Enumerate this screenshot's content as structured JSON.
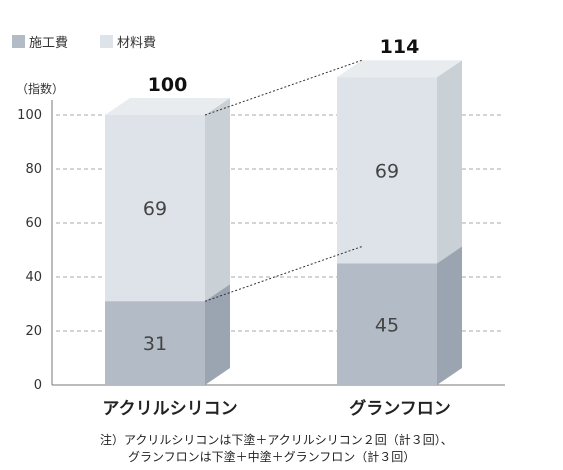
{
  "chart_data": {
    "type": "bar",
    "stacked": true,
    "unit_label": "（指数）",
    "categories": [
      "アクリルシリコン",
      "グランフロン"
    ],
    "series": [
      {
        "name": "施工費",
        "values": [
          31,
          45
        ],
        "color": "#b3bcc6"
      },
      {
        "name": "材料費",
        "values": [
          69,
          69
        ],
        "color": "#dde3e8"
      }
    ],
    "totals": [
      "100",
      "114"
    ],
    "ylim": [
      0,
      120
    ],
    "yticks": [
      0,
      20,
      40,
      60,
      80,
      100
    ],
    "grid": true,
    "legend_position": "top-left",
    "notes": [
      "注）アクリルシリコンは下塗＋アクリルシリコン２回（計３回）、",
      "グランフロンは下塗＋中塗＋グランフロン（計３回）"
    ]
  }
}
